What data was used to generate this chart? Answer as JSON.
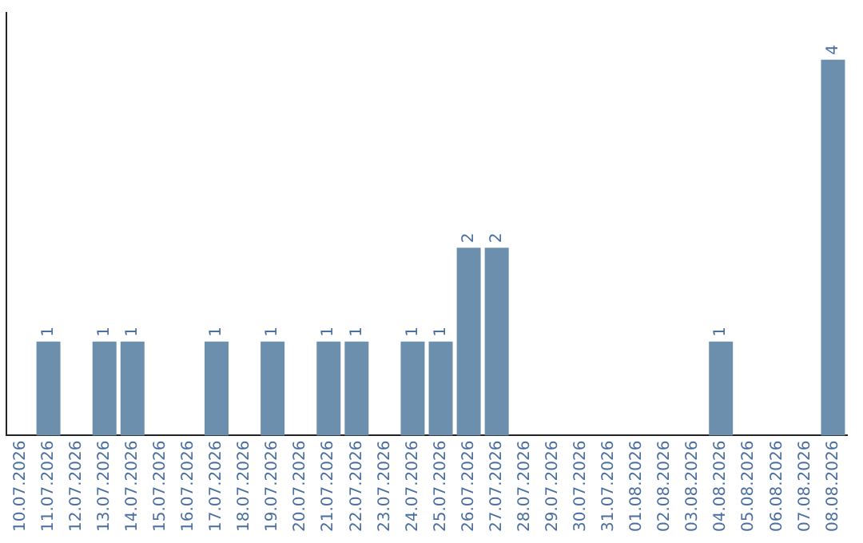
{
  "chart_data": {
    "type": "bar",
    "categories": [
      "10.07.2026",
      "11.07.2026",
      "12.07.2026",
      "13.07.2026",
      "14.07.2026",
      "15.07.2026",
      "16.07.2026",
      "17.07.2026",
      "18.07.2026",
      "19.07.2026",
      "20.07.2026",
      "21.07.2026",
      "22.07.2026",
      "23.07.2026",
      "24.07.2026",
      "25.07.2026",
      "26.07.2026",
      "27.07.2026",
      "28.07.2026",
      "29.07.2026",
      "30.07.2026",
      "31.07.2026",
      "01.08.2026",
      "02.08.2026",
      "03.08.2026",
      "04.08.2026",
      "05.08.2026",
      "06.08.2026",
      "07.08.2026",
      "08.08.2026"
    ],
    "values": [
      0,
      1,
      0,
      1,
      1,
      0,
      0,
      1,
      0,
      1,
      0,
      1,
      1,
      0,
      1,
      1,
      2,
      2,
      0,
      0,
      0,
      0,
      0,
      0,
      0,
      1,
      0,
      0,
      0,
      4
    ],
    "value_labels": [
      null,
      "1",
      null,
      "1",
      "1",
      null,
      null,
      "1",
      null,
      "1",
      null,
      "1",
      "1",
      null,
      "1",
      "1",
      "2",
      "2",
      null,
      null,
      null,
      null,
      null,
      null,
      null,
      "1",
      null,
      null,
      null,
      "4"
    ],
    "color": "#6d8fae",
    "grid": false,
    "legend": false,
    "tick_labels": "x"
  }
}
